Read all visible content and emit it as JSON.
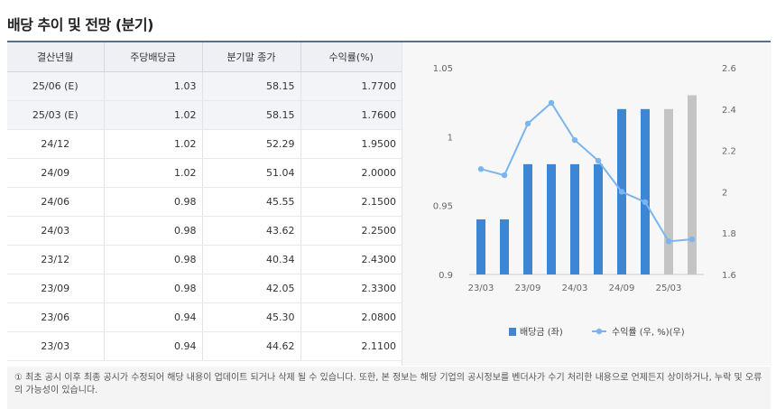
{
  "title": "배당 추이 및 전망 (분기)",
  "table": {
    "headers": [
      "결산년월",
      "주당배당금",
      "분기말 종가",
      "수익률(%)"
    ],
    "rows": [
      {
        "period": "25/06 (E)",
        "dps": "1.03",
        "close": "58.15",
        "yield": "1.7700",
        "estimate": true
      },
      {
        "period": "25/03 (E)",
        "dps": "1.02",
        "close": "58.15",
        "yield": "1.7600",
        "estimate": true
      },
      {
        "period": "24/12",
        "dps": "1.02",
        "close": "52.29",
        "yield": "1.9500"
      },
      {
        "period": "24/09",
        "dps": "1.02",
        "close": "51.04",
        "yield": "2.0000"
      },
      {
        "period": "24/06",
        "dps": "0.98",
        "close": "45.55",
        "yield": "2.1500"
      },
      {
        "period": "24/03",
        "dps": "0.98",
        "close": "43.62",
        "yield": "2.2500"
      },
      {
        "period": "23/12",
        "dps": "0.98",
        "close": "40.34",
        "yield": "2.4300"
      },
      {
        "period": "23/09",
        "dps": "0.98",
        "close": "42.05",
        "yield": "2.3300"
      },
      {
        "period": "23/06",
        "dps": "0.94",
        "close": "45.30",
        "yield": "2.0800"
      },
      {
        "period": "23/03",
        "dps": "0.94",
        "close": "44.62",
        "yield": "2.1100"
      }
    ]
  },
  "chart_data": {
    "type": "bar",
    "categories": [
      "23/03",
      "23/06",
      "23/09",
      "23/12",
      "24/03",
      "24/06",
      "24/09",
      "24/12",
      "25/03",
      "25/06"
    ],
    "x_tick_labels": [
      "23/03",
      "23/09",
      "24/03",
      "24/09",
      "25/03"
    ],
    "series": [
      {
        "name": "배당금 (좌)",
        "type": "bar",
        "axis": "left",
        "values": [
          0.94,
          0.94,
          0.98,
          0.98,
          0.98,
          0.98,
          1.02,
          1.02,
          1.02,
          1.03
        ],
        "estimate": [
          false,
          false,
          false,
          false,
          false,
          false,
          false,
          false,
          true,
          true
        ]
      },
      {
        "name": "수익률 (우, %)(우)",
        "type": "line",
        "axis": "right",
        "values": [
          2.11,
          2.08,
          2.33,
          2.43,
          2.25,
          2.15,
          2.0,
          1.95,
          1.76,
          1.77
        ]
      }
    ],
    "y_left": {
      "min": 0.9,
      "max": 1.05,
      "ticks": [
        "0.9",
        "0.95",
        "1",
        "1.05"
      ]
    },
    "y_right": {
      "min": 1.6,
      "max": 2.6,
      "ticks": [
        "1.6",
        "1.8",
        "2",
        "2.2",
        "2.4",
        "2.6"
      ]
    },
    "colors": {
      "bar": "#3d86d4",
      "bar_estimate": "#c4c4c4",
      "line": "#7cb5ec"
    },
    "legend_placement": "bottom"
  },
  "note": "① 최초 공시 이후 최종 공시가 수정되어 해당 내용이 업데이트 되거나 삭제 될 수 있습니다. 또한, 본 정보는 해당 기업의 공시정보를 벤더사가 수기 처리한 내용으로 언제든지 상이하거나, 누락 및 오류의 가능성이 있습니다."
}
